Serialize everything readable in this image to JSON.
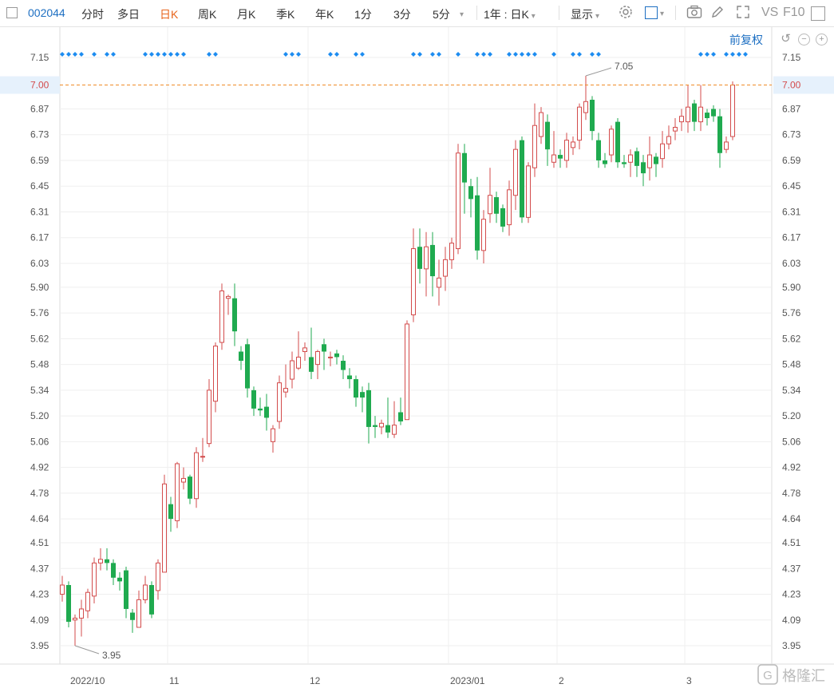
{
  "toolbar": {
    "code": "002044",
    "periods": [
      "分时",
      "多日",
      "日K",
      "周K",
      "月K",
      "季K",
      "年K",
      "1分",
      "3分",
      "5分"
    ],
    "active_period": "日K",
    "range_select": "1年 : 日K",
    "display_label": "显示",
    "vs_label": "VS",
    "f10_label": "F10"
  },
  "subbar": {
    "adjust_label": "前复权"
  },
  "watermark": "格隆汇",
  "chart_data": {
    "type": "candlestick",
    "y_range": [
      3.88,
      7.2
    ],
    "y_ticks": [
      3.95,
      4.09,
      4.23,
      4.37,
      4.51,
      4.64,
      4.78,
      4.92,
      5.06,
      5.2,
      5.34,
      5.48,
      5.62,
      5.76,
      5.9,
      6.03,
      6.17,
      6.31,
      6.45,
      6.59,
      6.73,
      6.87,
      7.0,
      7.15
    ],
    "x_labels": [
      "2022/10",
      "11",
      "12",
      "2023/01",
      "2",
      "3"
    ],
    "month_start_index": [
      0,
      17,
      39,
      61,
      78,
      98
    ],
    "reference_line": {
      "value": 7.0,
      "label": "7.00",
      "color": "#f08c28"
    },
    "annotations": {
      "high": "7.05",
      "low": "3.95"
    },
    "up_color": "#d34b4b",
    "down_color": "#1faa4f",
    "candles": [
      [
        4.23,
        4.28,
        4.19,
        4.33
      ],
      [
        4.28,
        4.08,
        4.05,
        4.3
      ],
      [
        4.09,
        4.1,
        3.95,
        4.12
      ],
      [
        4.1,
        4.15,
        4.0,
        4.2
      ],
      [
        4.14,
        4.24,
        4.1,
        4.26
      ],
      [
        4.22,
        4.4,
        4.18,
        4.43
      ],
      [
        4.4,
        4.42,
        4.36,
        4.48
      ],
      [
        4.42,
        4.4,
        4.36,
        4.48
      ],
      [
        4.4,
        4.32,
        4.28,
        4.42
      ],
      [
        4.32,
        4.3,
        4.25,
        4.35
      ],
      [
        4.36,
        4.15,
        4.1,
        4.38
      ],
      [
        4.13,
        4.09,
        4.02,
        4.15
      ],
      [
        4.05,
        4.2,
        4.05,
        4.25
      ],
      [
        4.2,
        4.28,
        4.18,
        4.33
      ],
      [
        4.28,
        4.12,
        4.1,
        4.3
      ],
      [
        4.25,
        4.4,
        4.2,
        4.42
      ],
      [
        4.35,
        4.83,
        4.35,
        4.88
      ],
      [
        4.72,
        4.64,
        4.57,
        4.76
      ],
      [
        4.63,
        4.94,
        4.59,
        4.95
      ],
      [
        4.84,
        4.86,
        4.8,
        4.92
      ],
      [
        4.87,
        4.75,
        4.72,
        4.88
      ],
      [
        4.75,
        5.0,
        4.7,
        5.03
      ],
      [
        4.98,
        4.98,
        4.95,
        5.08
      ],
      [
        5.05,
        5.34,
        5.03,
        5.4
      ],
      [
        5.28,
        5.58,
        5.22,
        5.6
      ],
      [
        5.6,
        5.88,
        5.56,
        5.92
      ],
      [
        5.84,
        5.85,
        5.75,
        5.86
      ],
      [
        5.84,
        5.66,
        5.58,
        5.92
      ],
      [
        5.55,
        5.5,
        5.45,
        5.58
      ],
      [
        5.59,
        5.35,
        5.3,
        5.62
      ],
      [
        5.34,
        5.24,
        5.2,
        5.36
      ],
      [
        5.24,
        5.23,
        5.2,
        5.3
      ],
      [
        5.25,
        5.19,
        5.12,
        5.32
      ],
      [
        5.06,
        5.13,
        5.0,
        5.15
      ],
      [
        5.17,
        5.38,
        5.13,
        5.42
      ],
      [
        5.33,
        5.35,
        5.3,
        5.48
      ],
      [
        5.4,
        5.5,
        5.35,
        5.55
      ],
      [
        5.46,
        5.52,
        5.45,
        5.66
      ],
      [
        5.55,
        5.57,
        5.5,
        5.6
      ],
      [
        5.52,
        5.44,
        5.4,
        5.68
      ],
      [
        5.48,
        5.55,
        5.4,
        5.56
      ],
      [
        5.59,
        5.55,
        5.45,
        5.62
      ],
      [
        5.52,
        5.52,
        5.47,
        5.55
      ],
      [
        5.54,
        5.52,
        5.48,
        5.56
      ],
      [
        5.5,
        5.45,
        5.4,
        5.53
      ],
      [
        5.42,
        5.4,
        5.35,
        5.46
      ],
      [
        5.4,
        5.3,
        5.25,
        5.42
      ],
      [
        5.33,
        5.3,
        5.22,
        5.36
      ],
      [
        5.34,
        5.14,
        5.05,
        5.38
      ],
      [
        5.15,
        5.14,
        5.08,
        5.2
      ],
      [
        5.14,
        5.16,
        5.1,
        5.18
      ],
      [
        5.15,
        5.11,
        5.08,
        5.3
      ],
      [
        5.1,
        5.15,
        5.08,
        5.28
      ],
      [
        5.22,
        5.17,
        5.15,
        5.3
      ],
      [
        5.18,
        5.7,
        5.18,
        5.72
      ],
      [
        5.75,
        6.11,
        5.71,
        6.22
      ],
      [
        6.12,
        6.0,
        5.92,
        6.22
      ],
      [
        6.0,
        6.12,
        5.85,
        6.2
      ],
      [
        6.13,
        5.96,
        5.85,
        6.2
      ],
      [
        5.9,
        5.95,
        5.8,
        6.05
      ],
      [
        5.96,
        6.05,
        5.88,
        6.12
      ],
      [
        6.05,
        6.14,
        6.0,
        6.17
      ],
      [
        6.11,
        6.63,
        6.08,
        6.68
      ],
      [
        6.63,
        6.47,
        6.3,
        6.68
      ],
      [
        6.45,
        6.38,
        6.28,
        6.49
      ],
      [
        6.4,
        6.1,
        6.05,
        6.5
      ],
      [
        6.1,
        6.27,
        6.03,
        6.32
      ],
      [
        6.3,
        6.4,
        6.25,
        6.55
      ],
      [
        6.39,
        6.3,
        6.25,
        6.42
      ],
      [
        6.33,
        6.23,
        6.2,
        6.35
      ],
      [
        6.24,
        6.43,
        6.18,
        6.48
      ],
      [
        6.4,
        6.65,
        6.32,
        6.7
      ],
      [
        6.7,
        6.28,
        6.25,
        6.72
      ],
      [
        6.28,
        6.56,
        6.25,
        6.58
      ],
      [
        6.55,
        6.78,
        6.5,
        6.9
      ],
      [
        6.72,
        6.85,
        6.68,
        6.88
      ],
      [
        6.8,
        6.65,
        6.56,
        6.84
      ],
      [
        6.58,
        6.62,
        6.55,
        6.75
      ],
      [
        6.62,
        6.6,
        6.55,
        6.65
      ],
      [
        6.59,
        6.7,
        6.55,
        6.74
      ],
      [
        6.66,
        6.69,
        6.62,
        6.72
      ],
      [
        6.7,
        6.88,
        6.65,
        6.9
      ],
      [
        6.85,
        6.91,
        6.81,
        7.05
      ],
      [
        6.92,
        6.75,
        6.7,
        6.94
      ],
      [
        6.7,
        6.59,
        6.55,
        6.74
      ],
      [
        6.59,
        6.57,
        6.55,
        6.63
      ],
      [
        6.62,
        6.76,
        6.58,
        6.78
      ],
      [
        6.8,
        6.58,
        6.55,
        6.82
      ],
      [
        6.58,
        6.57,
        6.55,
        6.62
      ],
      [
        6.58,
        6.62,
        6.5,
        6.65
      ],
      [
        6.64,
        6.56,
        6.5,
        6.66
      ],
      [
        6.58,
        6.52,
        6.45,
        6.62
      ],
      [
        6.55,
        6.62,
        6.48,
        6.72
      ],
      [
        6.61,
        6.57,
        6.5,
        6.63
      ],
      [
        6.6,
        6.68,
        6.55,
        6.75
      ],
      [
        6.68,
        6.72,
        6.65,
        6.78
      ],
      [
        6.75,
        6.77,
        6.7,
        6.82
      ],
      [
        6.8,
        6.83,
        6.75,
        6.87
      ],
      [
        6.8,
        6.88,
        6.74,
        7.0
      ],
      [
        6.9,
        6.8,
        6.75,
        6.92
      ],
      [
        6.8,
        6.88,
        6.75,
        7.0
      ],
      [
        6.85,
        6.82,
        6.78,
        6.87
      ],
      [
        6.87,
        6.83,
        6.8,
        6.89
      ],
      [
        6.83,
        6.63,
        6.55,
        6.87
      ],
      [
        6.65,
        6.69,
        6.63,
        6.72
      ],
      [
        6.72,
        7.0,
        6.7,
        7.02
      ]
    ],
    "dot_groups": [
      [
        0,
        3
      ],
      [
        5,
        5
      ],
      [
        7,
        8
      ],
      [
        13,
        19
      ],
      [
        23,
        24
      ],
      [
        35,
        37
      ],
      [
        42,
        43
      ],
      [
        46,
        47
      ],
      [
        55,
        56
      ],
      [
        58,
        59
      ],
      [
        62,
        62
      ],
      [
        65,
        67
      ],
      [
        70,
        74
      ],
      [
        77,
        77
      ],
      [
        80,
        81
      ],
      [
        83,
        84
      ],
      [
        100,
        102
      ],
      [
        104,
        107
      ]
    ]
  }
}
